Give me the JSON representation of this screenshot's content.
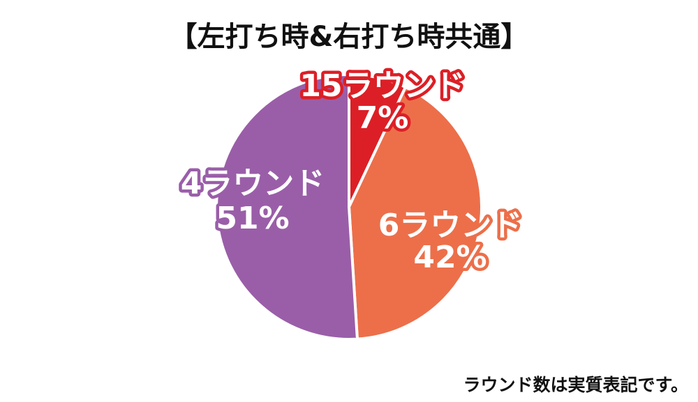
{
  "chart_data": {
    "type": "pie",
    "title": "【左打ち時&右打ち時共通】",
    "slices": [
      {
        "label": "15ラウンド",
        "value": 7,
        "percent_label": "7%",
        "color": "#dc1f26"
      },
      {
        "label": "6ラウンド",
        "value": 42,
        "percent_label": "42%",
        "color": "#ec6f4a"
      },
      {
        "label": "4ラウンド",
        "value": 51,
        "percent_label": "51%",
        "color": "#9a5ea8"
      }
    ],
    "start_angle_deg": 0,
    "direction": "clockwise",
    "slice_border_color": "#ffffff"
  },
  "footnote": "ラウンド数は実質表記です。"
}
